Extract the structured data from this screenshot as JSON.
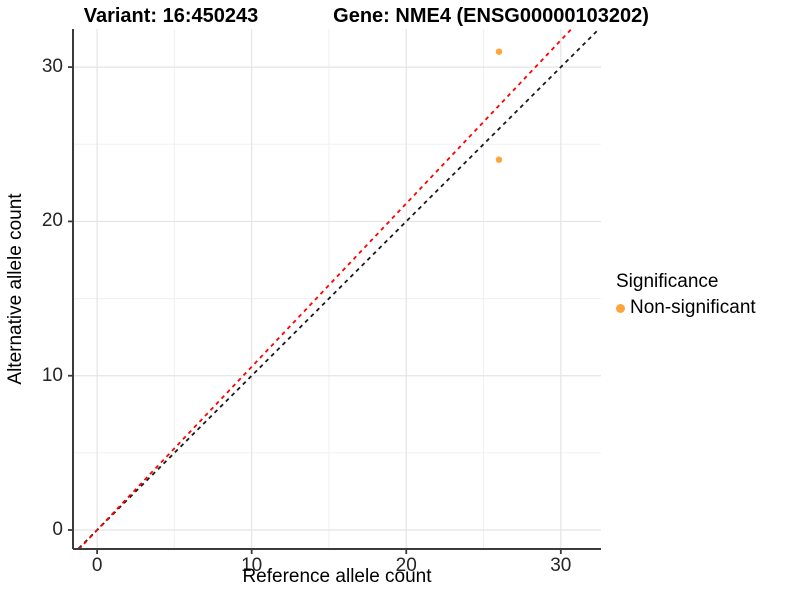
{
  "chart_data": {
    "type": "scatter",
    "titles": {
      "variant": "Variant: 16:450243",
      "gene": "Gene: NME4 (ENSG00000103202)"
    },
    "xlabel": "Reference allele count",
    "ylabel": "Alternative allele count",
    "xlim": [
      -1.56,
      32.6
    ],
    "ylim": [
      -1.23,
      32.47
    ],
    "xticks": [
      0,
      10,
      20,
      30
    ],
    "yticks": [
      0,
      10,
      20,
      30
    ],
    "xminor": [
      5,
      15,
      25
    ],
    "yminor": [
      5,
      15,
      25
    ],
    "grid": true,
    "legend_position": "right",
    "points": [
      {
        "x": 26,
        "y": 31,
        "series": "Non-significant"
      },
      {
        "x": 26,
        "y": 24,
        "series": "Non-significant"
      }
    ],
    "ablines": [
      {
        "name": "identity-line",
        "slope": 1,
        "intercept": 0,
        "color": "#1A1A1A"
      },
      {
        "name": "fitted-line",
        "slope": 1.058,
        "intercept": 0,
        "color": "#FF0000"
      }
    ],
    "colors": {
      "point": "#FFA43B",
      "grid_major": "#E4E4E4",
      "grid_minor": "#F0F0F0",
      "axis": "#3B3B3B",
      "tick_text": "#262626"
    },
    "legend": {
      "title": "Significance",
      "items": [
        {
          "label": "Non-significant",
          "color": "#FFA43B"
        }
      ]
    }
  }
}
